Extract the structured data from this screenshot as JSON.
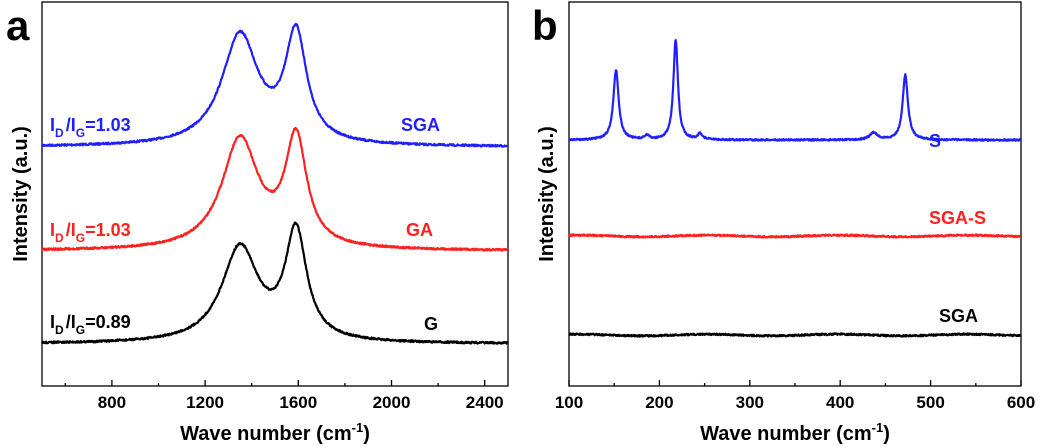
{
  "chart_data": [
    {
      "type": "line",
      "panel_label": "a",
      "xlabel": "Wave number (cm",
      "xlabel_sup": "-1",
      "xlabel_suffix": ")",
      "ylabel": "Intensity (a.u.)",
      "xlim": [
        500,
        2500
      ],
      "xticks": [
        800,
        1200,
        1600,
        2000,
        2400
      ],
      "y_ticks_shown": false,
      "grid": false,
      "series": [
        {
          "name": "SGA",
          "color": "#1f1fff",
          "offset": 2.0,
          "peaks": [
            {
              "x": 1350,
              "height": 1.0,
              "width": 95
            },
            {
              "x": 1590,
              "height": 0.98,
              "width": 55
            }
          ],
          "ratio": {
            "I": "I",
            "D": "D",
            "G": "G",
            "value": "=1.03"
          }
        },
        {
          "name": "GA",
          "color": "#ff2020",
          "offset": 1.0,
          "peaks": [
            {
              "x": 1350,
              "height": 1.0,
              "width": 95
            },
            {
              "x": 1590,
              "height": 0.98,
              "width": 55
            }
          ],
          "ratio": {
            "I": "I",
            "D": "D",
            "G": "G",
            "value": "=1.03"
          }
        },
        {
          "name": "G",
          "color": "#000000",
          "offset": 0.0,
          "peaks": [
            {
              "x": 1350,
              "height": 0.88,
              "width": 95
            },
            {
              "x": 1590,
              "height": 1.0,
              "width": 55
            }
          ],
          "ratio": {
            "I": "I",
            "D": "D",
            "G": "G",
            "value": "=0.89"
          }
        }
      ]
    },
    {
      "type": "line",
      "panel_label": "b",
      "xlabel": "Wave number (cm",
      "xlabel_sup": "-1",
      "xlabel_suffix": ")",
      "ylabel": "Intensity (a.u.)",
      "xlim": [
        100,
        600
      ],
      "xticks": [
        100,
        200,
        300,
        400,
        500,
        600
      ],
      "y_ticks_shown": false,
      "grid": false,
      "series": [
        {
          "name": "S",
          "color": "#1f1fff",
          "offset": 2.0,
          "peaks": [
            {
              "x": 152,
              "height": 0.7,
              "width": 3.5
            },
            {
              "x": 186,
              "height": 0.04,
              "width": 3
            },
            {
              "x": 218,
              "height": 1.0,
              "width": 3
            },
            {
              "x": 245,
              "height": 0.06,
              "width": 3
            },
            {
              "x": 437,
              "height": 0.07,
              "width": 5
            },
            {
              "x": 472,
              "height": 0.65,
              "width": 3.5
            }
          ]
        },
        {
          "name": "SGA-S",
          "color": "#ff2020",
          "offset": 1.0,
          "peaks": []
        },
        {
          "name": "SGA",
          "color": "#000000",
          "offset": 0.0,
          "peaks": []
        }
      ]
    }
  ]
}
